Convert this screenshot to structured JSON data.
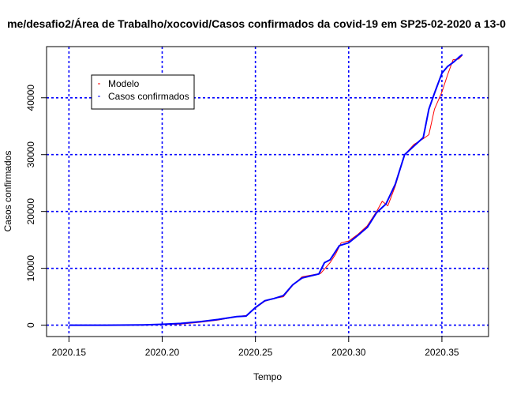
{
  "chart_data": {
    "type": "line",
    "title": "me/desafio2/Área de Trabalho/xocovid/Casos confirmados da covid-19 em SP25-02-2020 a 13-0",
    "xlabel": "Tempo",
    "ylabel": "Casos confirmados",
    "xlim": [
      2020.138,
      2020.375
    ],
    "ylim": [
      -2000,
      49000
    ],
    "x_ticks": [
      2020.15,
      2020.2,
      2020.25,
      2020.3,
      2020.35
    ],
    "x_tick_labels": [
      "2020.15",
      "2020.20",
      "2020.25",
      "2020.30",
      "2020.35"
    ],
    "y_ticks": [
      0,
      10000,
      20000,
      30000,
      40000
    ],
    "y_tick_labels": [
      "0",
      "10000",
      "20000",
      "30000",
      "40000"
    ],
    "grid": true,
    "grid_color": "#0000ff",
    "legend_position": "top-left",
    "series": [
      {
        "name": "Modelo",
        "color": "#ff0000",
        "x": [
          2020.15,
          2020.17,
          2020.19,
          2020.2,
          2020.21,
          2020.22,
          2020.23,
          2020.24,
          2020.245,
          2020.25,
          2020.255,
          2020.26,
          2020.265,
          2020.27,
          2020.275,
          2020.28,
          2020.285,
          2020.29,
          2020.293,
          2020.296,
          2020.3,
          2020.305,
          2020.31,
          2020.315,
          2020.318,
          2020.321,
          2020.325,
          2020.33,
          2020.335,
          2020.34,
          2020.343,
          2020.346,
          2020.35,
          2020.353,
          2020.356,
          2020.359,
          2020.361
        ],
        "y": [
          0,
          0,
          50,
          100,
          200,
          500,
          900,
          1500,
          1700,
          3000,
          4200,
          4700,
          5000,
          7000,
          8500,
          8800,
          9100,
          11000,
          12500,
          14500,
          14800,
          16000,
          17500,
          20000,
          21800,
          21000,
          24500,
          30000,
          31800,
          32800,
          33500,
          38000,
          41000,
          44000,
          46700,
          46800,
          47500
        ]
      },
      {
        "name": "Casos confirmados",
        "color": "#0000ff",
        "x": [
          2020.15,
          2020.17,
          2020.19,
          2020.2,
          2020.21,
          2020.22,
          2020.23,
          2020.24,
          2020.245,
          2020.25,
          2020.255,
          2020.26,
          2020.265,
          2020.27,
          2020.275,
          2020.28,
          2020.284,
          2020.287,
          2020.29,
          2020.295,
          2020.3,
          2020.305,
          2020.31,
          2020.315,
          2020.32,
          2020.325,
          2020.33,
          2020.335,
          2020.34,
          2020.343,
          2020.346,
          2020.35,
          2020.353,
          2020.356,
          2020.359,
          2020.361
        ],
        "y": [
          0,
          0,
          50,
          150,
          300,
          600,
          1000,
          1500,
          1600,
          3100,
          4300,
          4700,
          5200,
          7100,
          8300,
          8700,
          9000,
          11000,
          11500,
          14000,
          14500,
          15800,
          17200,
          19800,
          21300,
          24800,
          30000,
          31500,
          33000,
          38000,
          40800,
          44300,
          45500,
          46200,
          47100,
          47600
        ]
      }
    ]
  }
}
